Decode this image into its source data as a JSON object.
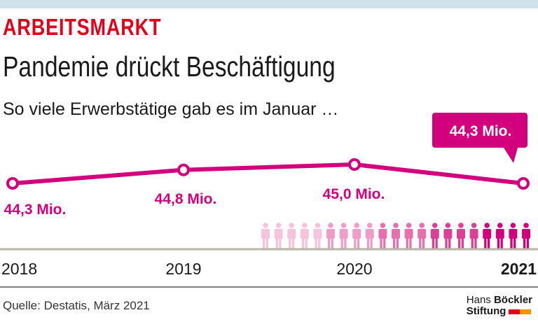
{
  "header": {
    "kicker": "ARBEITSMARKT",
    "title": "Pandemie drückt Beschäftigung",
    "subtitle": "So viele Erwerbstätige gab es im Januar …"
  },
  "chart_data": {
    "type": "line",
    "categories": [
      "2018",
      "2019",
      "2020",
      "2021"
    ],
    "values": [
      44.3,
      44.8,
      45.0,
      44.3
    ],
    "data_labels": [
      "44,3 Mio.",
      "44,8 Mio.",
      "45,0 Mio.",
      "44,3 Mio."
    ],
    "highlight": {
      "category": "2021",
      "label": "44,3 Mio."
    },
    "unit": "Mio.",
    "grid": false,
    "pictogram_count": 21
  },
  "footer": {
    "source": "Quelle: Destatis, März 2021",
    "logo_line1_a": "Hans",
    "logo_line1_b": "Böckler",
    "logo_line2": "Stiftung"
  },
  "colors": {
    "accent": "#d3007d",
    "kicker": "#e2001a",
    "topbar": "#cfe2ec",
    "logo_red": "#e2001a",
    "logo_orange": "#f39200"
  }
}
